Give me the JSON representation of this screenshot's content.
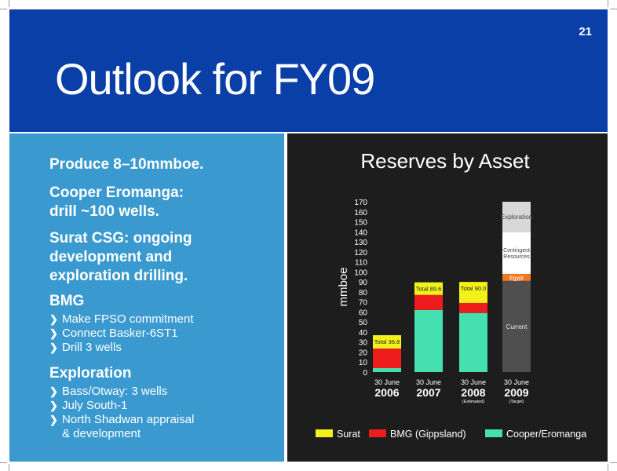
{
  "slide": {
    "page_number": "21",
    "title": "Outlook for FY09"
  },
  "left": {
    "point1": "Produce 8–10mmboe.",
    "point2": [
      "Cooper Eromanga:",
      "drill ~100 wells."
    ],
    "point3": [
      "Surat CSG: ongoing",
      "development and",
      "exploration drilling."
    ],
    "bmg": {
      "heading": "BMG",
      "items": [
        "Make FPSO commitment",
        "Connect Basker-6ST1",
        "Drill 3 wells"
      ]
    },
    "exploration": {
      "heading": "Exploration",
      "items": [
        "Bass/Otway: 3 wells",
        "July South-1",
        "North Shadwan appraisal",
        "& development"
      ]
    }
  },
  "chart_data": {
    "type": "bar",
    "stacked": true,
    "title": "Reserves by Asset",
    "ylabel": "mmboe",
    "ylim": [
      0,
      170
    ],
    "yticks": [
      0,
      10,
      20,
      30,
      40,
      50,
      60,
      70,
      80,
      90,
      100,
      110,
      120,
      130,
      140,
      150,
      160,
      170
    ],
    "categories": [
      {
        "date": "30 June",
        "year": "2006",
        "note": ""
      },
      {
        "date": "30 June",
        "year": "2007",
        "note": ""
      },
      {
        "date": "30 June",
        "year": "2008",
        "note": "(Estimated)"
      },
      {
        "date": "30 June",
        "year": "2009",
        "note": "(Target)"
      }
    ],
    "series": [
      {
        "name": "Cooper/Eromanga",
        "color": "#44e0b0",
        "values": [
          4,
          62,
          59,
          null
        ]
      },
      {
        "name": "BMG (Gippsland)",
        "color": "#ee1c1c",
        "values": [
          19.5,
          15,
          10,
          null
        ]
      },
      {
        "name": "Surat",
        "color": "#f2f21a",
        "values": [
          13.3,
          12.6,
          21,
          null
        ]
      }
    ],
    "totals": [
      "Total 36.8",
      "Total 89.6",
      "Total 90.0",
      ""
    ],
    "target_2009": {
      "segments": [
        {
          "label": "Current",
          "color": "#4f4f4f",
          "text_color": "#e8e8e8",
          "value": 91
        },
        {
          "label": "Egypt",
          "color": "#f07820",
          "text_color": "#ffffff",
          "value": 7
        },
        {
          "label": "Contingent Resources",
          "color": "#ffffff",
          "text_color": "#444444",
          "value": 42
        },
        {
          "label": "Exploration",
          "color": "#d8d8d8",
          "text_color": "#444444",
          "value": 30
        }
      ]
    },
    "legend_position": "bottom",
    "grid": false
  },
  "colors": {
    "header_bg": "#0a3fa8",
    "left_panel_bg": "#3a9ad0",
    "chart_bg": "#1d1d1d"
  }
}
